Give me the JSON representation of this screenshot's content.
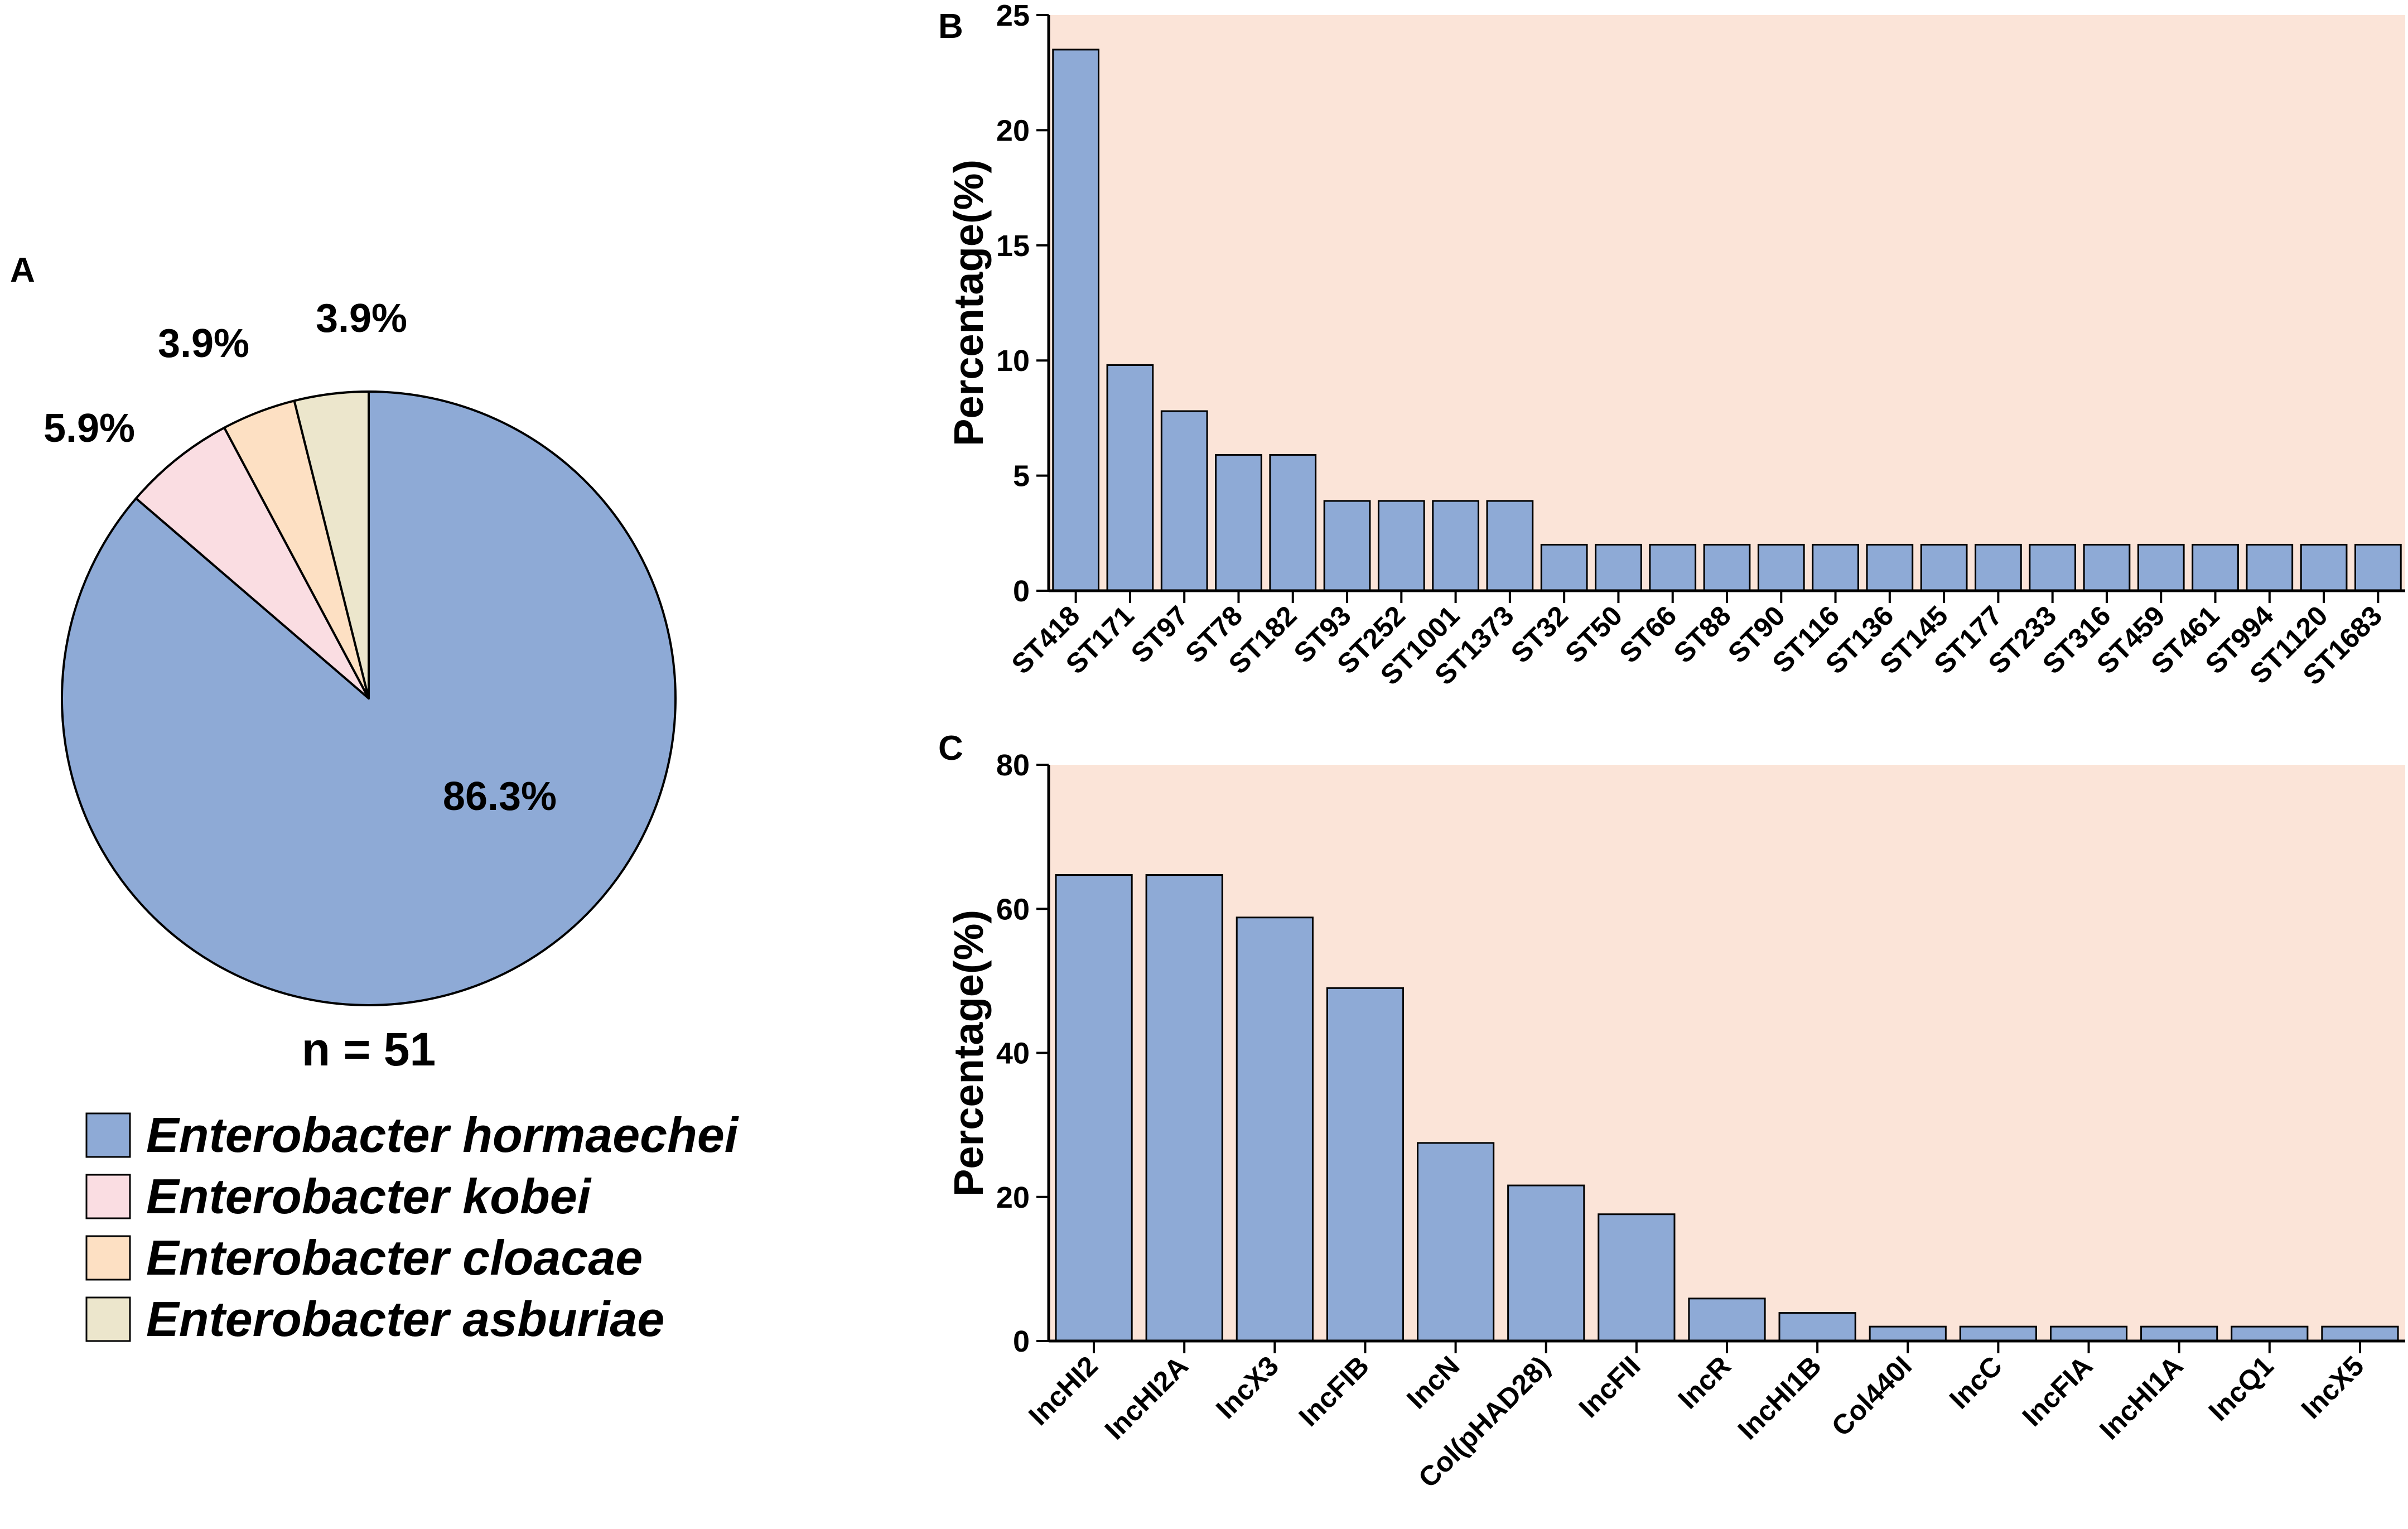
{
  "panels": {
    "a": "A",
    "b": "B",
    "c": "C"
  },
  "colors": {
    "hormaechei": "#8eaad6",
    "kobei": "#fadde2",
    "cloacae": "#fde0c3",
    "asburiae": "#ece6cc",
    "bar": "#8eaad6",
    "plot_bg": "#fbe4d8",
    "stroke": "#000000"
  },
  "pie": {
    "n_label": "n = 51",
    "slices": [
      {
        "key": "hormaechei",
        "label": "Enterobacter hormaechei",
        "value": 86.3,
        "pct_text": "86.3%"
      },
      {
        "key": "kobei",
        "label": "Enterobacter kobei",
        "value": 5.9,
        "pct_text": "5.9%"
      },
      {
        "key": "cloacae",
        "label": "Enterobacter cloacae",
        "value": 3.9,
        "pct_text": "3.9%"
      },
      {
        "key": "asburiae",
        "label": "Enterobacter asburiae",
        "value": 3.9,
        "pct_text": "3.9%"
      }
    ]
  },
  "chart_data": [
    {
      "type": "pie",
      "panel": "A",
      "title": "",
      "categories": [
        "Enterobacter hormaechei",
        "Enterobacter kobei",
        "Enterobacter cloacae",
        "Enterobacter asburiae"
      ],
      "values": [
        86.3,
        5.9,
        3.9,
        3.9
      ],
      "annotation": "n = 51"
    },
    {
      "type": "bar",
      "panel": "B",
      "ylabel": "Percentage(%)",
      "xlabel": "",
      "ylim": [
        0,
        25
      ],
      "yticks": [
        0,
        5,
        10,
        15,
        20,
        25
      ],
      "categories": [
        "ST418",
        "ST171",
        "ST97",
        "ST78",
        "ST182",
        "ST93",
        "ST252",
        "ST1001",
        "ST1373",
        "ST32",
        "ST50",
        "ST66",
        "ST88",
        "ST90",
        "ST116",
        "ST136",
        "ST145",
        "ST177",
        "ST233",
        "ST316",
        "ST459",
        "ST461",
        "ST994",
        "ST1120",
        "ST1683"
      ],
      "values": [
        23.5,
        9.8,
        7.8,
        5.9,
        5.9,
        3.9,
        3.9,
        3.9,
        3.9,
        2.0,
        2.0,
        2.0,
        2.0,
        2.0,
        2.0,
        2.0,
        2.0,
        2.0,
        2.0,
        2.0,
        2.0,
        2.0,
        2.0,
        2.0,
        2.0
      ]
    },
    {
      "type": "bar",
      "panel": "C",
      "ylabel": "Percentage(%)",
      "xlabel": "",
      "ylim": [
        0,
        80
      ],
      "yticks": [
        0,
        20,
        40,
        60,
        80
      ],
      "categories": [
        "IncHI2",
        "IncHI2A",
        "IncX3",
        "IncFIB",
        "IncN",
        "Col(pHAD28)",
        "IncFII",
        "IncR",
        "IncHI1B",
        "Col440I",
        "IncC",
        "IncFIA",
        "IncHI1A",
        "IncQ1",
        "IncX5"
      ],
      "values": [
        64.7,
        64.7,
        58.8,
        49.0,
        27.5,
        21.6,
        17.6,
        5.9,
        3.9,
        2.0,
        2.0,
        2.0,
        2.0,
        2.0,
        2.0
      ]
    }
  ]
}
